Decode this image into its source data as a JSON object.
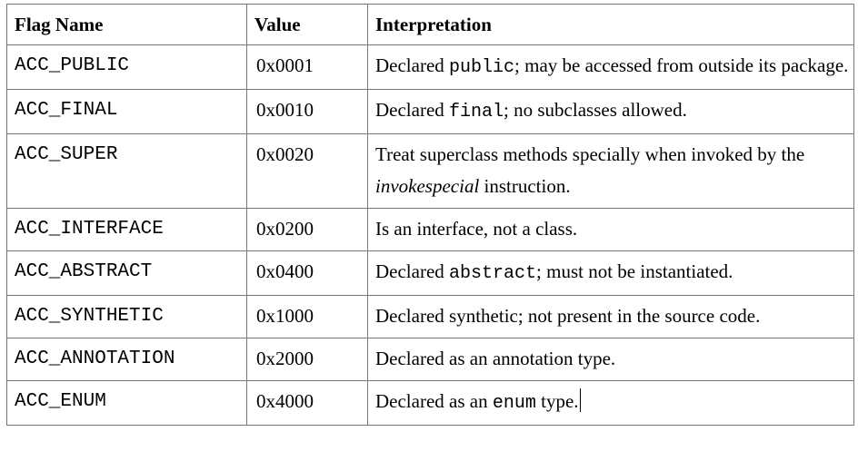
{
  "table": {
    "headers": {
      "flag_name": "Flag Name",
      "value": "Value",
      "interpretation": "Interpretation"
    },
    "rows": [
      {
        "flag": "ACC_PUBLIC",
        "value": "0x0001",
        "text_before": "Declared ",
        "code": "public",
        "text_after": "; may be accessed from outside its package."
      },
      {
        "flag": "ACC_FINAL",
        "value": "0x0010",
        "text_before": "Declared ",
        "code": "final",
        "text_after": "; no subclasses allowed."
      },
      {
        "flag": "ACC_SUPER",
        "value": "0x0020",
        "text_before": "Treat superclass methods specially when invoked by the ",
        "italic": "invokespecial",
        "text_after": " instruction."
      },
      {
        "flag": "ACC_INTERFACE",
        "value": "0x0200",
        "text": "Is an interface, not a class."
      },
      {
        "flag": "ACC_ABSTRACT",
        "value": "0x0400",
        "text_before": "Declared ",
        "code": "abstract",
        "text_after": "; must not be instantiated."
      },
      {
        "flag": "ACC_SYNTHETIC",
        "value": "0x1000",
        "text": "Declared synthetic; not present in the source code."
      },
      {
        "flag": "ACC_ANNOTATION",
        "value": "0x2000",
        "text": "Declared as an annotation type."
      },
      {
        "flag": "ACC_ENUM",
        "value": "0x4000",
        "text_before": "Declared as an ",
        "code": "enum",
        "text_after": " type."
      }
    ]
  }
}
